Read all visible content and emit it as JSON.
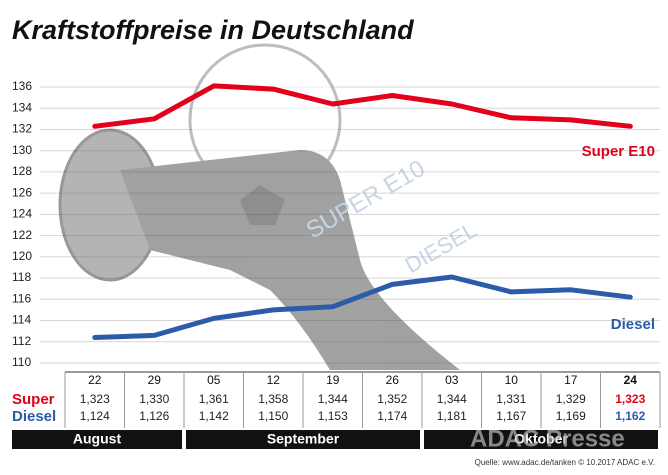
{
  "chart_data": {
    "type": "line",
    "title": "Kraftstoffpreise in Deutschland",
    "groups": [
      {
        "name": "August",
        "categories": [
          "22",
          "29"
        ]
      },
      {
        "name": "September",
        "categories": [
          "05",
          "12",
          "19",
          "26"
        ]
      },
      {
        "name": "Oktober",
        "categories": [
          "03",
          "10",
          "17",
          "24"
        ]
      }
    ],
    "row_labels": [
      "Super",
      "Diesel"
    ],
    "series": [
      {
        "name": "Super E10",
        "color": "#e2001a",
        "values": [
          132.3,
          133.0,
          136.1,
          135.8,
          134.4,
          135.2,
          134.4,
          133.1,
          132.9,
          132.3
        ],
        "value_labels": [
          "1,323",
          "1,330",
          "1,361",
          "1,358",
          "1,344",
          "1,352",
          "1,344",
          "1,331",
          "1,329",
          "1,323"
        ]
      },
      {
        "name": "Diesel",
        "color": "#2a5caa",
        "values": [
          112.4,
          112.6,
          114.2,
          115.0,
          115.3,
          117.4,
          118.1,
          116.7,
          116.9,
          116.2
        ],
        "value_labels": [
          "1,124",
          "1,126",
          "1,142",
          "1,150",
          "1,153",
          "1,174",
          "1,181",
          "1,167",
          "1,169",
          "1,162"
        ]
      }
    ],
    "ylim": [
      110,
      136
    ],
    "yticks": [
      110,
      112,
      114,
      116,
      118,
      120,
      122,
      124,
      126,
      128,
      130,
      132,
      134,
      136
    ],
    "grid": true,
    "source": "Quelle: www.adac.de/tanken  © 10.2017  ADAC e.V.",
    "watermark": "ADAC Presse"
  }
}
